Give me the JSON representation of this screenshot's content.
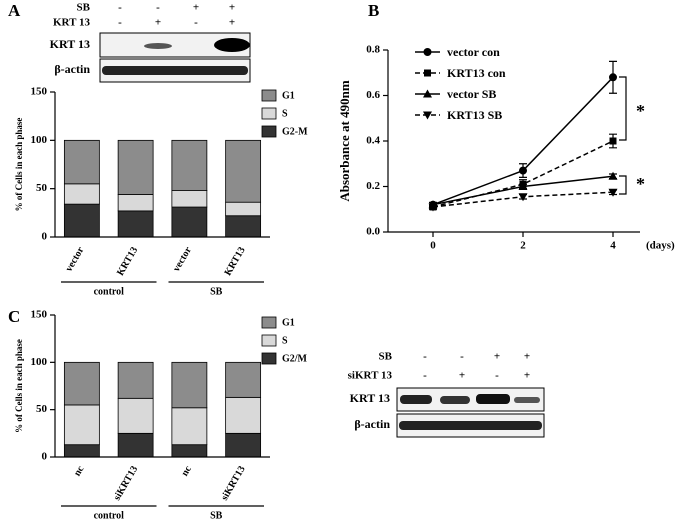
{
  "chart_data": [
    {
      "type": "bar",
      "stacked": true,
      "panel_label": "A",
      "ylabel": "% of Cells in each phase",
      "categories": [
        "vector",
        "KRT13",
        "vector",
        "KRT13"
      ],
      "groups": [
        "control",
        "SB"
      ],
      "series": [
        {
          "name": "G1",
          "color": "#8c8c8c",
          "values": [
            45,
            56,
            52,
            64
          ]
        },
        {
          "name": "S",
          "color": "#d9d9d9",
          "values": [
            21,
            17,
            17,
            14
          ]
        },
        {
          "name": "G2-M",
          "color": "#333333",
          "values": [
            34,
            27,
            31,
            22
          ]
        }
      ],
      "ylim": [
        0,
        150
      ],
      "yticks": [
        0,
        50,
        100,
        150
      ]
    },
    {
      "type": "line",
      "panel_label": "B",
      "ylabel": "Absorbance at 490nm",
      "xlabel": "(days)",
      "x": [
        0,
        2,
        4
      ],
      "series": [
        {
          "name": "vector con",
          "color": "#000000",
          "marker": "circle",
          "dashed": false,
          "values": [
            0.12,
            0.27,
            0.68
          ],
          "errors": [
            0.01,
            0.03,
            0.07
          ]
        },
        {
          "name": "KRT13 con",
          "color": "#000000",
          "marker": "square",
          "dashed": true,
          "values": [
            0.11,
            0.21,
            0.4
          ],
          "errors": [
            0.01,
            0.02,
            0.03
          ]
        },
        {
          "name": "vector SB",
          "color": "#000000",
          "marker": "triangle",
          "dashed": false,
          "values": [
            0.12,
            0.2,
            0.245
          ],
          "errors": [
            0.01,
            0.01,
            0.01
          ]
        },
        {
          "name": "KRT13 SB",
          "color": "#000000",
          "marker": "triangle-down",
          "dashed": true,
          "values": [
            0.11,
            0.155,
            0.175
          ],
          "errors": [
            0.005,
            0.01,
            0.01
          ]
        }
      ],
      "xlim": [
        -1,
        4.6
      ],
      "xticks": [
        0,
        2,
        4
      ],
      "ylim": [
        0,
        0.8
      ],
      "yticks": [
        {
          "value": 0,
          "label": "0.0"
        },
        0.2,
        0.4,
        0.6,
        0.8
      ],
      "annotations": [
        "*",
        "*"
      ]
    },
    {
      "type": "bar",
      "stacked": true,
      "panel_label": "C",
      "ylabel": "% of Cells in each phase",
      "categories": [
        "nc",
        "siKRT13",
        "nc",
        "siKRT13"
      ],
      "groups": [
        "control",
        "SB"
      ],
      "series": [
        {
          "name": "G1",
          "color": "#8c8c8c",
          "values": [
            45,
            38,
            48,
            37
          ]
        },
        {
          "name": "S",
          "color": "#d9d9d9",
          "values": [
            42,
            37,
            39,
            38
          ]
        },
        {
          "name": "G2/M",
          "color": "#333333",
          "values": [
            13,
            25,
            13,
            25
          ]
        }
      ],
      "ylim": [
        0,
        150
      ],
      "yticks": [
        0,
        50,
        100,
        150
      ]
    }
  ],
  "blots": [
    {
      "rows": [
        {
          "label": "SB",
          "marks": [
            "-",
            "-",
            "+",
            "+"
          ]
        },
        {
          "label": "KRT 13",
          "marks": [
            "-",
            "+",
            "-",
            "+"
          ]
        }
      ],
      "bands": [
        "KRT 13",
        "β-actin"
      ]
    },
    {
      "rows": [
        {
          "label": "SB",
          "marks": [
            "-",
            "-",
            "+",
            "+"
          ]
        },
        {
          "label": "siKRT 13",
          "marks": [
            "-",
            "+",
            "-",
            "+"
          ]
        }
      ],
      "bands": [
        "KRT 13",
        "β-actin"
      ]
    }
  ]
}
